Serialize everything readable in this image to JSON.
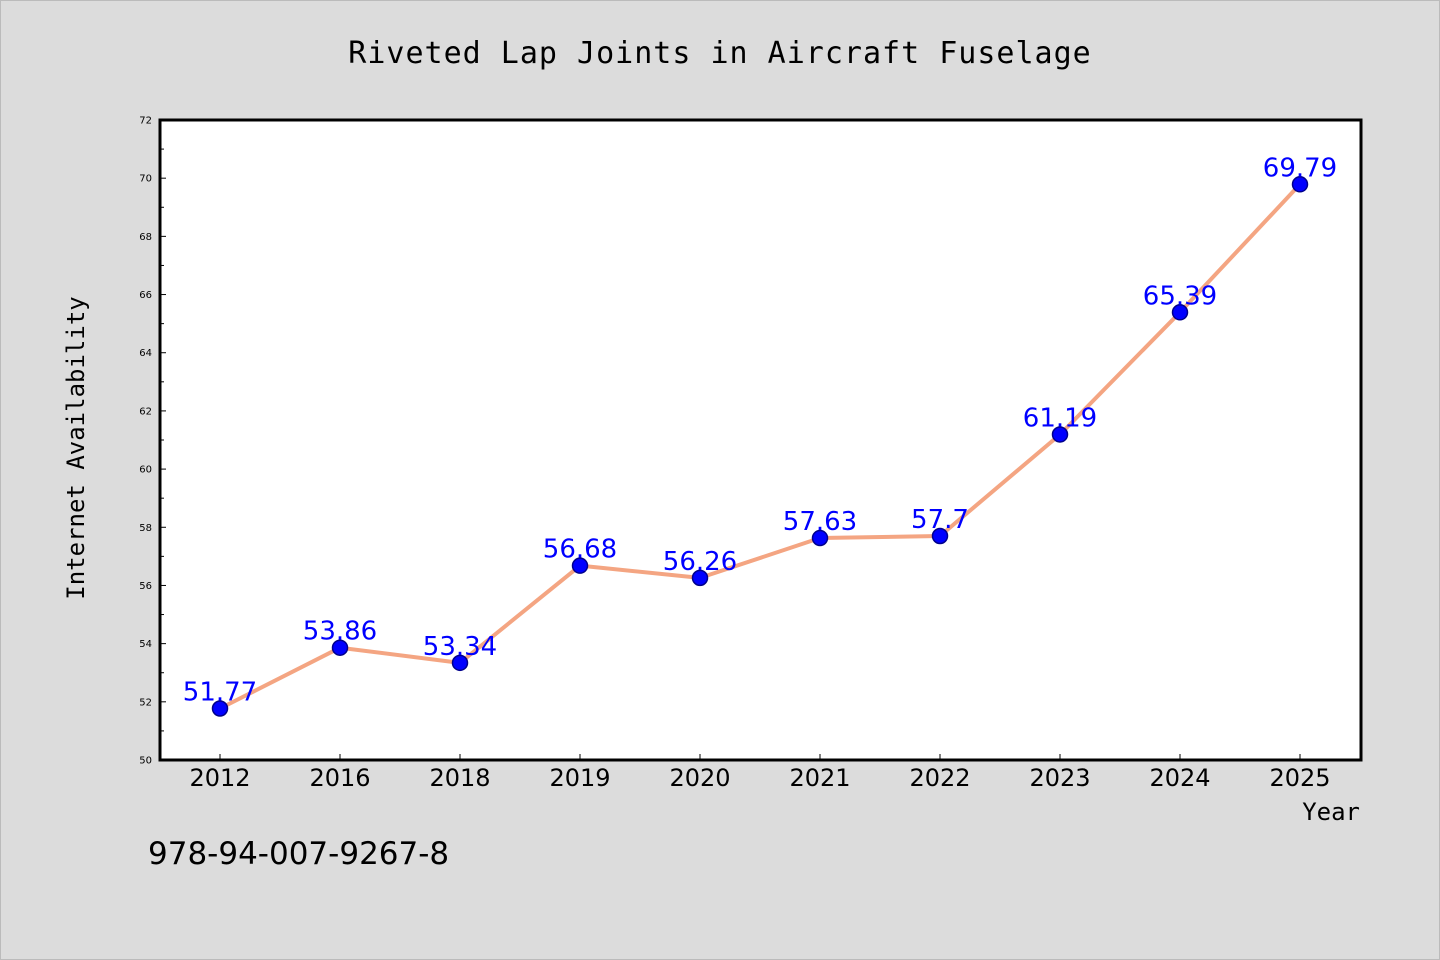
{
  "chart_data": {
    "type": "line",
    "title": "Riveted Lap Joints in Aircraft Fuselage",
    "xlabel": "Year",
    "ylabel": "Internet Availability",
    "categories": [
      "2012",
      "2016",
      "2018",
      "2019",
      "2020",
      "2021",
      "2022",
      "2023",
      "2024",
      "2025"
    ],
    "values": [
      51.77,
      53.86,
      53.34,
      56.68,
      56.26,
      57.63,
      57.7,
      61.19,
      65.39,
      69.79
    ],
    "data_labels": [
      "51.77",
      "53.86",
      "53.34",
      "56.68",
      "56.26",
      "57.63",
      "57.7",
      "61.19",
      "65.39",
      "69.79"
    ],
    "ylim": [
      50,
      72
    ],
    "yticks": [
      50,
      52,
      54,
      56,
      58,
      60,
      62,
      64,
      66,
      68,
      70,
      72
    ],
    "grid": false,
    "legend": "none",
    "colors": {
      "line": "#f4a582",
      "marker": "#0000ff",
      "marker_edge": "#00008b",
      "label": "#0000ff",
      "background": "#dcdcdc",
      "plot_background": "#ffffff"
    }
  },
  "footer": {
    "isbn": "978-94-007-9267-8"
  }
}
